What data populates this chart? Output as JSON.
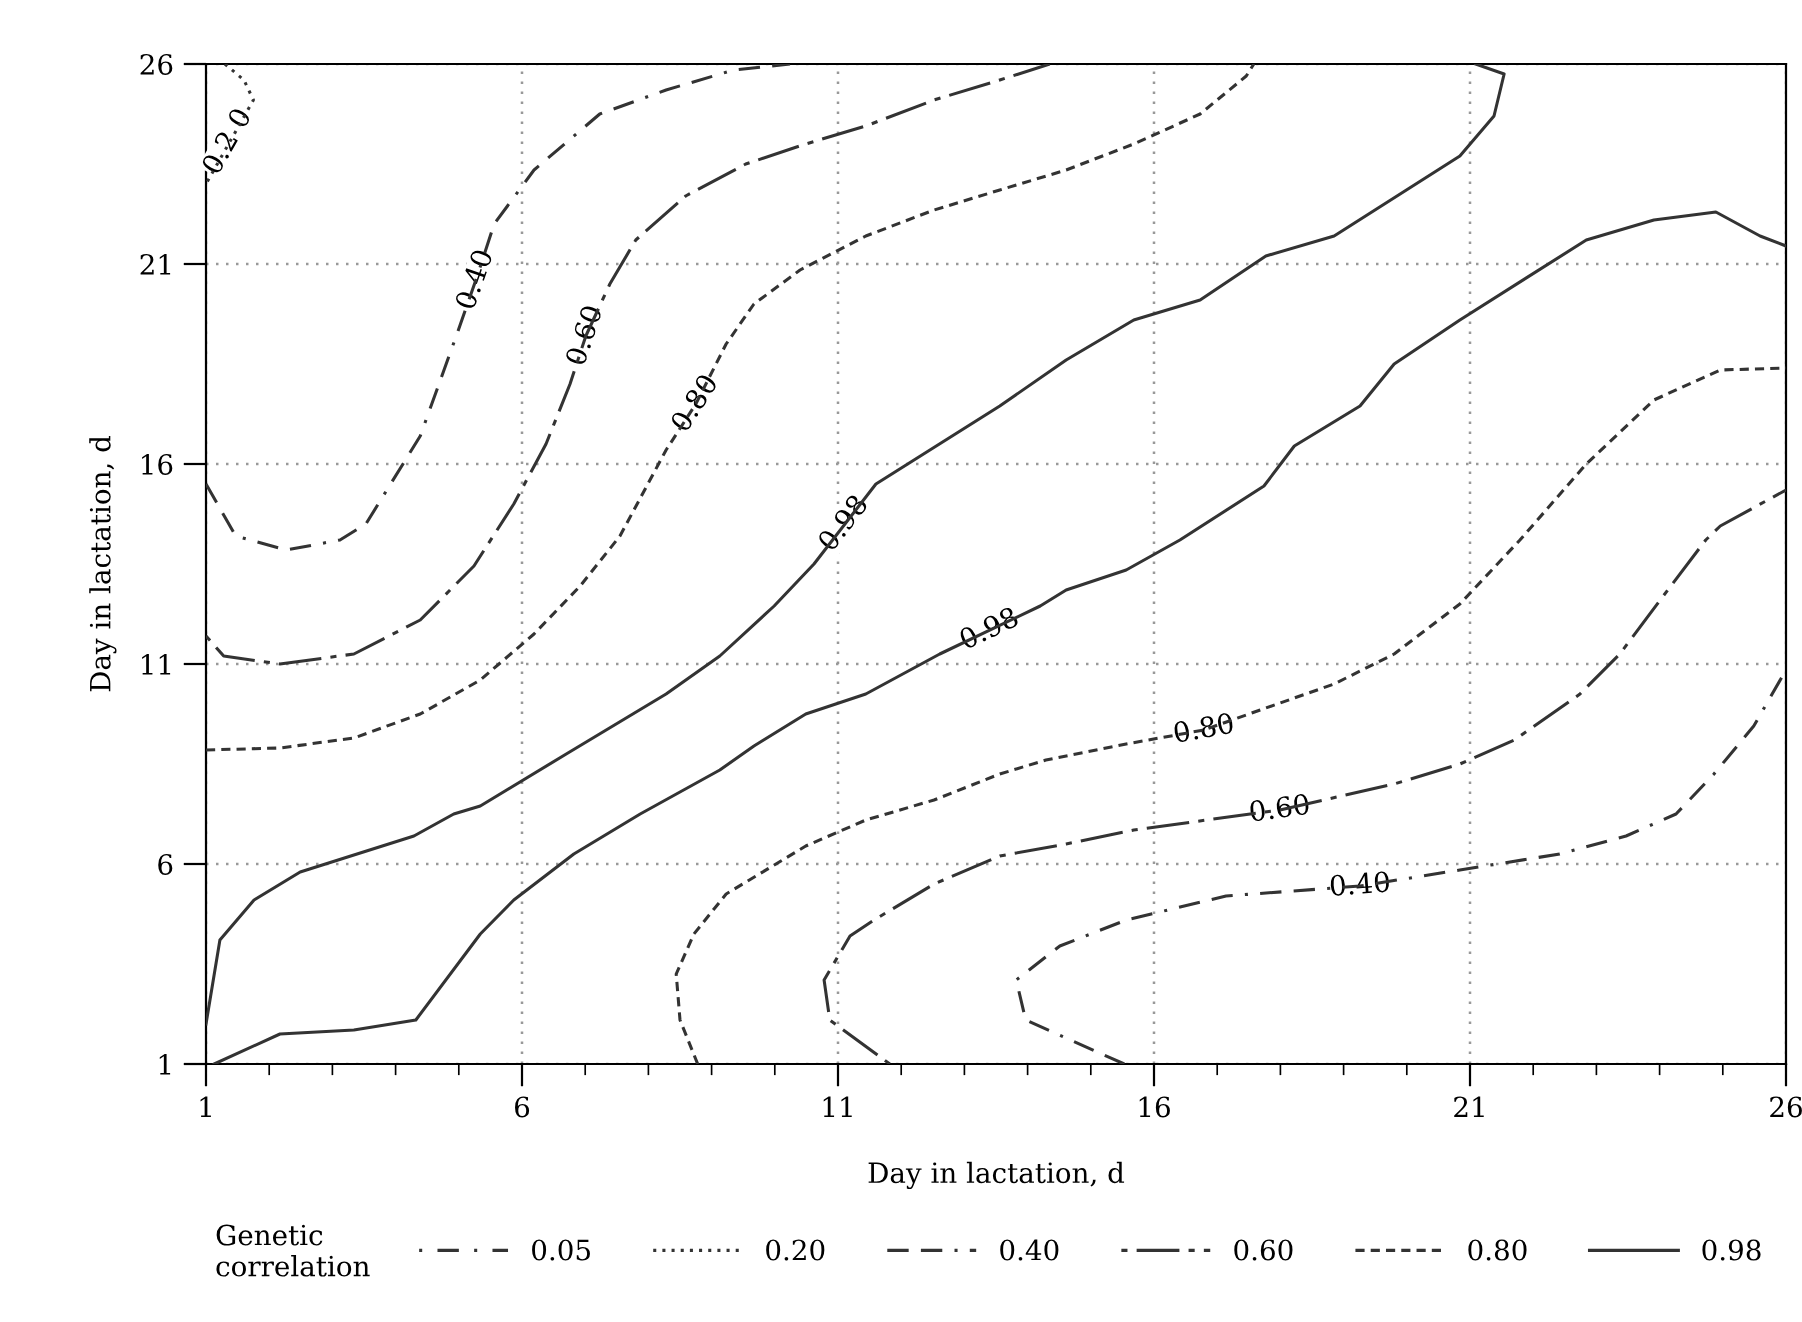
{
  "chart_data": {
    "type": "line",
    "xlabel": "Day in lactation, d",
    "ylabel": "Day in lactation, d",
    "legend_title": "Genetic\ncorrelation",
    "xlim": [
      1,
      26
    ],
    "ylim": [
      1,
      26
    ],
    "xticks": [
      1,
      6,
      11,
      16,
      21,
      26
    ],
    "yticks": [
      1,
      6,
      11,
      16,
      21,
      26
    ],
    "grid": true,
    "legend": "bottom",
    "marker": "none",
    "series": [
      {
        "name": "0.05",
        "color": "#333333",
        "line_style": "dashdot"
      },
      {
        "name": "0.20",
        "color": "#333333",
        "line_style": "dotted",
        "x": [
          1.3,
          1.6,
          1.75,
          1.0
        ],
        "values": [
          26,
          25.6,
          25.1,
          23.0
        ]
      },
      {
        "name": "0.40",
        "color": "#333333",
        "line_style": "longdash",
        "x": [
          1.0,
          1.47,
          2.27,
          3.12,
          3.53,
          4.39,
          4.96,
          5.27,
          5.56,
          6.19,
          7.23,
          8.28,
          9.35,
          10.24,
          null,
          15.53,
          13.97,
          13.82,
          14.51,
          15.56,
          17.14,
          19.26,
          20.84,
          22.42,
          23.47,
          24.26,
          24.86,
          25.49,
          26
        ],
        "values": [
          15.5,
          14.2,
          13.85,
          14.1,
          14.5,
          16.7,
          19.2,
          20.6,
          22.0,
          23.35,
          24.75,
          25.35,
          25.85,
          26,
          null,
          1.0,
          2.1,
          3.1,
          3.95,
          4.6,
          5.2,
          5.45,
          5.85,
          6.25,
          6.7,
          7.25,
          8.25,
          9.45,
          10.85
        ]
      },
      {
        "name": "0.60",
        "color": "#333333",
        "line_style": "dashlong",
        "x": [
          1,
          1.28,
          2.17,
          3.34,
          4.39,
          5.24,
          5.87,
          6.38,
          6.76,
          7.01,
          7.39,
          7.8,
          8.59,
          9.54,
          10.49,
          11.44,
          12.52,
          13.56,
          14.35,
          null,
          11.82,
          10.87,
          10.78,
          11.19,
          11.57,
          12.52,
          13.56,
          14.61,
          15.68,
          17.99,
          19.8,
          20.84,
          21.7,
          22.74,
          23.37,
          24.01,
          24.73,
          24.96,
          26
        ],
        "values": [
          11.7,
          11.2,
          11.0,
          11.25,
          12.1,
          13.45,
          15.0,
          16.5,
          18.0,
          19.2,
          20.5,
          21.6,
          22.7,
          23.5,
          24.0,
          24.45,
          25.1,
          25.6,
          26,
          null,
          1.0,
          2.1,
          3.1,
          4.2,
          4.6,
          5.5,
          6.2,
          6.5,
          6.85,
          7.35,
          8.0,
          8.5,
          9.1,
          10.25,
          11.25,
          12.6,
          14.1,
          14.45,
          15.35
        ]
      },
      {
        "name": "0.80",
        "color": "#333333",
        "line_style": "dashed",
        "x": [
          1,
          2.17,
          3.34,
          4.39,
          5.34,
          6.19,
          6.92,
          7.55,
          8.28,
          8.75,
          9.23,
          9.67,
          10.4,
          11.44,
          12.52,
          13.56,
          14.61,
          15.68,
          16.73,
          17.46,
          17.58,
          null,
          8.78,
          8.5,
          8.44,
          8.72,
          9.23,
          10.49,
          11.44,
          12.52,
          13.56,
          14.29,
          15.56,
          16.79,
          17.68,
          18.85,
          19.8,
          20.84,
          21.79,
          22.84,
          23.91,
          24.96,
          26
        ],
        "values": [
          8.85,
          8.9,
          9.15,
          9.75,
          10.6,
          11.75,
          12.95,
          14.2,
          16.35,
          17.5,
          19.0,
          20.0,
          20.85,
          21.7,
          22.35,
          22.85,
          23.35,
          24.0,
          24.75,
          25.7,
          26,
          null,
          1.0,
          2.1,
          3.25,
          4.25,
          5.25,
          6.45,
          7.1,
          7.6,
          8.25,
          8.6,
          9.0,
          9.35,
          9.85,
          10.5,
          11.25,
          12.5,
          14.1,
          16.0,
          17.6,
          18.35,
          18.4
        ]
      },
      {
        "name": "0.98",
        "color": "#333333",
        "line_style": "solid",
        "x": [
          1,
          1.22,
          1.76,
          2.49,
          4.29,
          4.92,
          5.34,
          6.7,
          8.28,
          9.13,
          9.99,
          10.62,
          11.6,
          13.56,
          14.61,
          15.68,
          16.73,
          17.77,
          18.85,
          20.84,
          21.38,
          21.54,
          21.09,
          null,
          1.13,
          2.17,
          3.34,
          4.32,
          5.34,
          5.87,
          6.82,
          7.87,
          9.13,
          9.67,
          10.49,
          11.44,
          12.61,
          14.2,
          14.61,
          15.56,
          16.41,
          17.74,
          18.22,
          19.26,
          19.8,
          20.84,
          22.84,
          23.91,
          24.89,
          25.59,
          26
        ],
        "values": [
          2.0,
          4.1,
          5.1,
          5.8,
          6.7,
          7.25,
          7.45,
          8.75,
          10.25,
          11.2,
          12.45,
          13.5,
          15.5,
          17.45,
          18.6,
          19.6,
          20.1,
          21.2,
          21.7,
          23.7,
          24.7,
          25.75,
          26,
          null,
          1.0,
          1.75,
          1.85,
          2.1,
          4.25,
          5.1,
          6.25,
          7.25,
          8.35,
          8.95,
          9.75,
          10.25,
          11.25,
          12.45,
          12.85,
          13.35,
          14.1,
          15.45,
          16.45,
          17.45,
          18.5,
          19.6,
          21.6,
          22.1,
          22.3,
          21.7,
          21.45
        ]
      }
    ],
    "annotations": [
      {
        "text": "0.2 0",
        "x": 1.35,
        "y": 24.05
      },
      {
        "text": "0.40",
        "x": 5.27,
        "y": 20.6
      },
      {
        "text": "0.60",
        "x": 7.01,
        "y": 19.2
      },
      {
        "text": "0.80",
        "x": 8.75,
        "y": 17.5
      },
      {
        "text": "0.98",
        "x": 11.1,
        "y": 14.5
      },
      {
        "text": "0.98",
        "x": 13.4,
        "y": 11.85
      },
      {
        "text": "0.80",
        "x": 16.79,
        "y": 9.35
      },
      {
        "text": "0.60",
        "x": 17.99,
        "y": 7.35
      },
      {
        "text": "0.40",
        "x": 19.26,
        "y": 5.45
      }
    ]
  }
}
